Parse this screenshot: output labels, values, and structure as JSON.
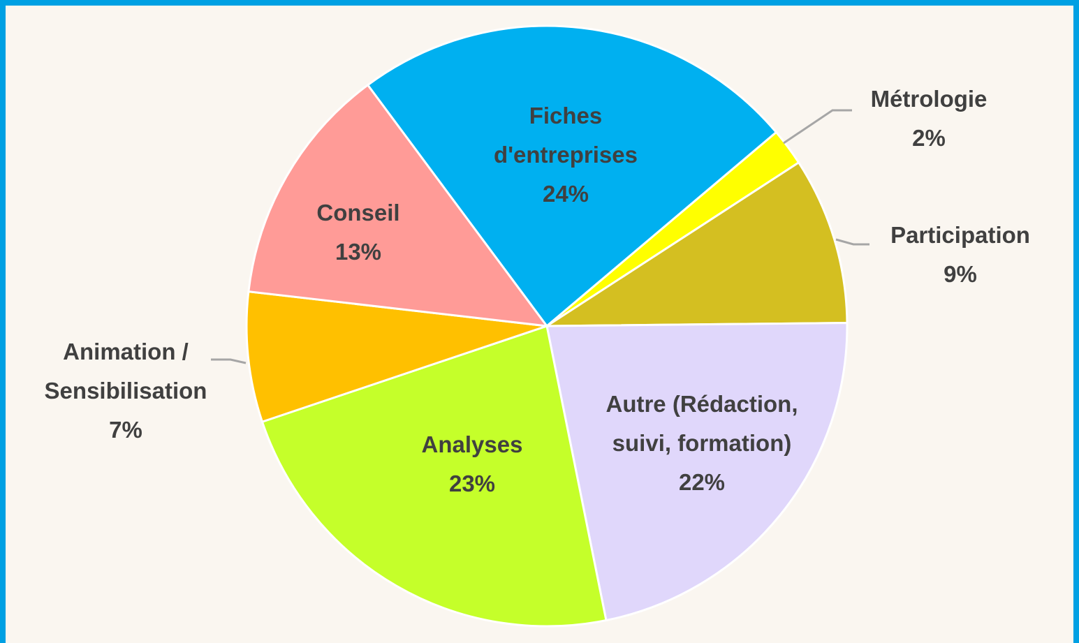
{
  "chart_data": {
    "type": "pie",
    "categories": [
      "Fiches d'entreprises",
      "Métrologie",
      "Participation",
      "Autre (Rédaction, suivi, formation)",
      "Analyses",
      "Animation / Sensibilisation",
      "Conseil"
    ],
    "values": [
      24,
      2,
      9,
      22,
      23,
      7,
      13
    ],
    "value_labels": [
      "24%",
      "2%",
      "9%",
      "22%",
      "23%",
      "7%",
      "13%"
    ],
    "colors": [
      "#00b0f0",
      "#ffff00",
      "#d4bf21",
      "#e0d7fb",
      "#c5ff2a",
      "#ffc000",
      "#ff9b97"
    ]
  }
}
